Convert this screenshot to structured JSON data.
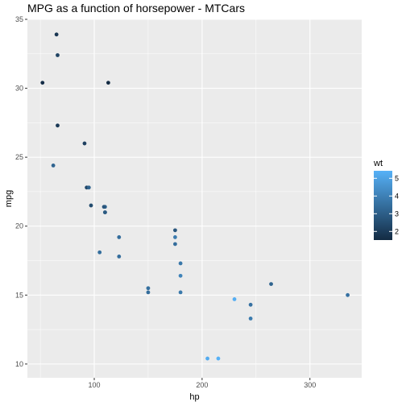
{
  "chart_data": {
    "type": "scatter",
    "title": "MPG as a function of horsepower - MTCars",
    "xlabel": "hp",
    "ylabel": "mpg",
    "xlim": [
      38,
      348
    ],
    "ylim": [
      9.0,
      35.0
    ],
    "x_ticks": [
      100,
      200,
      300
    ],
    "y_ticks": [
      10,
      15,
      20,
      25,
      30,
      35
    ],
    "grid": true,
    "legend": {
      "title": "wt",
      "placement": "right",
      "type": "colorbar",
      "range": [
        1.513,
        5.424
      ],
      "ticks": [
        2,
        3,
        4,
        5
      ],
      "low_color": "#132B43",
      "high_color": "#56B1F7"
    },
    "points": [
      {
        "hp": 110,
        "mpg": 21.0,
        "wt": 2.62
      },
      {
        "hp": 110,
        "mpg": 21.0,
        "wt": 2.875
      },
      {
        "hp": 93,
        "mpg": 22.8,
        "wt": 2.32
      },
      {
        "hp": 110,
        "mpg": 21.4,
        "wt": 3.215
      },
      {
        "hp": 175,
        "mpg": 18.7,
        "wt": 3.44
      },
      {
        "hp": 105,
        "mpg": 18.1,
        "wt": 3.46
      },
      {
        "hp": 245,
        "mpg": 14.3,
        "wt": 3.57
      },
      {
        "hp": 62,
        "mpg": 24.4,
        "wt": 3.19
      },
      {
        "hp": 95,
        "mpg": 22.8,
        "wt": 3.15
      },
      {
        "hp": 123,
        "mpg": 19.2,
        "wt": 3.44
      },
      {
        "hp": 123,
        "mpg": 17.8,
        "wt": 3.44
      },
      {
        "hp": 180,
        "mpg": 16.4,
        "wt": 4.07
      },
      {
        "hp": 180,
        "mpg": 17.3,
        "wt": 3.73
      },
      {
        "hp": 180,
        "mpg": 15.2,
        "wt": 3.78
      },
      {
        "hp": 205,
        "mpg": 10.4,
        "wt": 5.25
      },
      {
        "hp": 215,
        "mpg": 10.4,
        "wt": 5.424
      },
      {
        "hp": 230,
        "mpg": 14.7,
        "wt": 5.345
      },
      {
        "hp": 66,
        "mpg": 32.4,
        "wt": 2.2
      },
      {
        "hp": 52,
        "mpg": 30.4,
        "wt": 1.615
      },
      {
        "hp": 65,
        "mpg": 33.9,
        "wt": 1.835
      },
      {
        "hp": 97,
        "mpg": 21.5,
        "wt": 2.465
      },
      {
        "hp": 150,
        "mpg": 15.5,
        "wt": 3.52
      },
      {
        "hp": 150,
        "mpg": 15.2,
        "wt": 3.435
      },
      {
        "hp": 245,
        "mpg": 13.3,
        "wt": 3.84
      },
      {
        "hp": 175,
        "mpg": 19.2,
        "wt": 3.845
      },
      {
        "hp": 66,
        "mpg": 27.3,
        "wt": 1.935
      },
      {
        "hp": 91,
        "mpg": 26.0,
        "wt": 2.14
      },
      {
        "hp": 113,
        "mpg": 30.4,
        "wt": 1.513
      },
      {
        "hp": 264,
        "mpg": 15.8,
        "wt": 3.17
      },
      {
        "hp": 175,
        "mpg": 19.7,
        "wt": 2.77
      },
      {
        "hp": 335,
        "mpg": 15.0,
        "wt": 3.57
      },
      {
        "hp": 109,
        "mpg": 21.4,
        "wt": 2.78
      }
    ]
  }
}
